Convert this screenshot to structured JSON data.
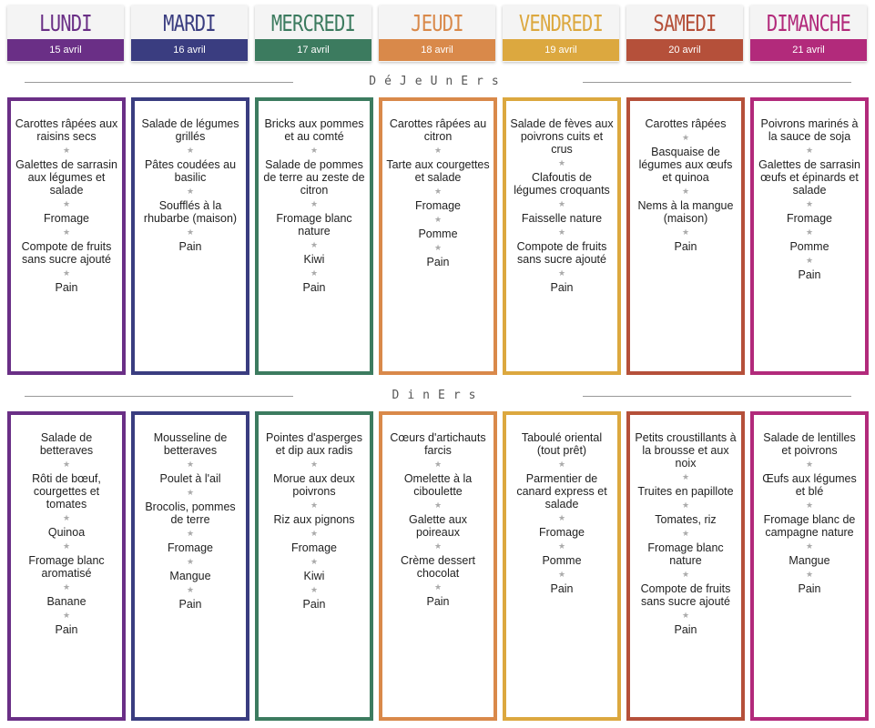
{
  "section_lunch": "DéJeUnErs",
  "section_dinner": "DinErs",
  "days": [
    {
      "name": "LUNDI",
      "date": "15 avril",
      "color": "#6a2f86",
      "lunch": [
        "Carottes râpées aux raisins secs",
        "Galettes de sarrasin aux légumes et salade",
        "Fromage",
        "Compote de fruits sans sucre ajouté",
        "Pain"
      ],
      "dinner": [
        "Salade de betteraves",
        "Rôti de bœuf, courgettes et tomates",
        "Quinoa",
        "Fromage blanc aromatisé",
        "Banane",
        "Pain"
      ]
    },
    {
      "name": "MARDI",
      "date": "16 avril",
      "color": "#3a3d80",
      "lunch": [
        "Salade de légumes grillés",
        "Pâtes coudées au basilic",
        "Soufflés à la rhubarbe (maison)",
        "Pain"
      ],
      "dinner": [
        "Mousseline de betteraves",
        "Poulet à l'ail",
        "Brocolis, pommes de terre",
        "Fromage",
        "Mangue",
        "Pain"
      ]
    },
    {
      "name": "MERCREDI",
      "date": "17 avril",
      "color": "#3c7b5f",
      "lunch": [
        "Bricks aux pommes et au comté",
        "Salade de pommes de terre au zeste de citron",
        "Fromage blanc nature",
        "Kiwi",
        "Pain"
      ],
      "dinner": [
        "Pointes d'asperges et dip aux radis",
        "Morue aux deux poivrons",
        "Riz aux pignons",
        "Fromage",
        "Kiwi",
        "Pain"
      ]
    },
    {
      "name": "JEUDI",
      "date": "18 avril",
      "color": "#d9894a",
      "lunch": [
        "Carottes râpées au citron",
        "Tarte aux courgettes et salade",
        "Fromage",
        "Pomme",
        "Pain"
      ],
      "dinner": [
        "Cœurs d'artichauts farcis",
        "Omelette à la ciboulette",
        "Galette aux poireaux",
        "Crème dessert chocolat",
        "Pain"
      ]
    },
    {
      "name": "VENDREDI",
      "date": "19 avril",
      "color": "#dca83f",
      "lunch": [
        "Salade de fèves aux poivrons cuits et crus",
        "Clafoutis de légumes croquants",
        "Faisselle nature",
        "Compote de fruits sans sucre ajouté",
        "Pain"
      ],
      "dinner": [
        "Taboulé oriental (tout prêt)",
        "Parmentier de canard express et salade",
        "Fromage",
        "Pomme",
        "Pain"
      ]
    },
    {
      "name": "SAMEDI",
      "date": "20 avril",
      "color": "#b5503a",
      "lunch": [
        "Carottes râpées",
        "Basquaise de légumes aux œufs et quinoa",
        "Nems à la mangue (maison)",
        "Pain"
      ],
      "dinner": [
        "Petits croustillants à la brousse et aux noix",
        "Truites en papillote",
        "Tomates, riz",
        "Fromage blanc nature",
        "Compote de fruits sans sucre ajouté",
        "Pain"
      ]
    },
    {
      "name": "DIMANCHE",
      "date": "21 avril",
      "color": "#b22a7b",
      "lunch": [
        "Poivrons marinés à la sauce de soja",
        "Galettes de sarrasin œufs et épinards et salade",
        "Fromage",
        "Pomme",
        "Pain"
      ],
      "dinner": [
        "Salade de lentilles et poivrons",
        "Œufs aux légumes et blé",
        "Fromage blanc de campagne nature",
        "Mangue",
        "Pain"
      ]
    }
  ]
}
